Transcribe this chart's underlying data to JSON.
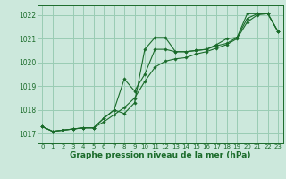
{
  "background_color": "#cce8dc",
  "grid_color": "#99ccb3",
  "line_color": "#1a6b2a",
  "marker_color": "#1a6b2a",
  "xlabel": "Graphe pression niveau de la mer (hPa)",
  "xlabel_fontsize": 6.5,
  "ylim": [
    1016.6,
    1022.4
  ],
  "xlim": [
    -0.5,
    23.5
  ],
  "yticks": [
    1017,
    1018,
    1019,
    1020,
    1021,
    1022
  ],
  "xticks": [
    0,
    1,
    2,
    3,
    4,
    5,
    6,
    7,
    8,
    9,
    10,
    11,
    12,
    13,
    14,
    15,
    16,
    17,
    18,
    19,
    20,
    21,
    22,
    23
  ],
  "series1": [
    1017.3,
    1017.1,
    1017.15,
    1017.2,
    1017.25,
    1017.25,
    1017.5,
    1017.8,
    1018.1,
    1018.5,
    1019.2,
    1019.8,
    1020.05,
    1020.15,
    1020.2,
    1020.35,
    1020.45,
    1020.6,
    1020.75,
    1021.0,
    1021.7,
    1022.0,
    1022.05,
    1021.3
  ],
  "series2": [
    1017.3,
    1017.1,
    1017.15,
    1017.2,
    1017.25,
    1017.25,
    1017.65,
    1018.0,
    1019.3,
    1018.8,
    1019.5,
    1020.55,
    1020.55,
    1020.45,
    1020.45,
    1020.5,
    1020.55,
    1020.7,
    1020.8,
    1021.05,
    1021.85,
    1022.05,
    1022.05,
    1021.3
  ],
  "series3": [
    1017.3,
    1017.1,
    1017.15,
    1017.2,
    1017.25,
    1017.25,
    1017.65,
    1018.0,
    1017.85,
    1018.3,
    1020.55,
    1021.05,
    1021.05,
    1020.45,
    1020.45,
    1020.5,
    1020.55,
    1020.75,
    1021.0,
    1021.05,
    1022.05,
    1022.05,
    1022.05,
    1021.3
  ]
}
